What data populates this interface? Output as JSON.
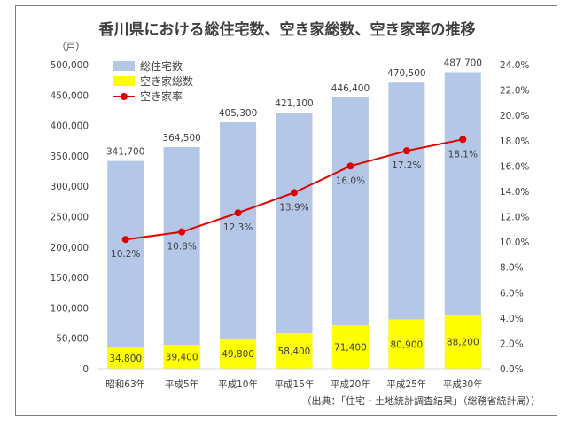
{
  "chart_data": {
    "type": "bar",
    "title": "香川県における総住宅数、空き家総数、空き家率の推移",
    "left_unit": "（戸）",
    "categories": [
      "昭和63年",
      "平成5年",
      "平成10年",
      "平成15年",
      "平成20年",
      "平成25年",
      "平成30年"
    ],
    "series": [
      {
        "name": "総住宅数",
        "kind": "bar",
        "axis": "left",
        "color": "#b4c7e7",
        "values": [
          341700,
          364500,
          405300,
          421100,
          446400,
          470500,
          487700
        ],
        "labels": [
          "341,700",
          "364,500",
          "405,300",
          "421,100",
          "446,400",
          "470,500",
          "487,700"
        ]
      },
      {
        "name": "空き家総数",
        "kind": "bar",
        "axis": "left",
        "color": "#ffff00",
        "values": [
          34800,
          39400,
          49800,
          58400,
          71400,
          80900,
          88200
        ],
        "labels": [
          "34,800",
          "39,400",
          "49,800",
          "58,400",
          "71,400",
          "80,900",
          "88,200"
        ]
      },
      {
        "name": "空き家率",
        "kind": "line",
        "axis": "right",
        "color": "#e00000",
        "values": [
          10.2,
          10.8,
          12.3,
          13.9,
          16.0,
          17.2,
          18.1
        ],
        "labels": [
          "10.2%",
          "10.8%",
          "12.3%",
          "13.9%",
          "16.0%",
          "17.2%",
          "18.1%"
        ]
      }
    ],
    "y_left": {
      "range": [
        0,
        500000
      ],
      "ticks": [
        0,
        50000,
        100000,
        150000,
        200000,
        250000,
        300000,
        350000,
        400000,
        450000,
        500000
      ],
      "tick_labels": [
        "0",
        "50,000",
        "100,000",
        "150,000",
        "200,000",
        "250,000",
        "300,000",
        "350,000",
        "400,000",
        "450,000",
        "500,000"
      ]
    },
    "y_right": {
      "range": [
        0,
        24
      ],
      "ticks": [
        0,
        2,
        4,
        6,
        8,
        10,
        12,
        14,
        16,
        18,
        20,
        22,
        24
      ],
      "tick_labels": [
        "0.0%",
        "2.0%",
        "4.0%",
        "6.0%",
        "8.0%",
        "10.0%",
        "12.0%",
        "14.0%",
        "16.0%",
        "18.0%",
        "20.0%",
        "22.0%",
        "24.0%"
      ]
    },
    "legend_position": "top-left",
    "grid": false,
    "source": "（出典：「住宅・土地統計調査結果」（総務省統計局））"
  }
}
